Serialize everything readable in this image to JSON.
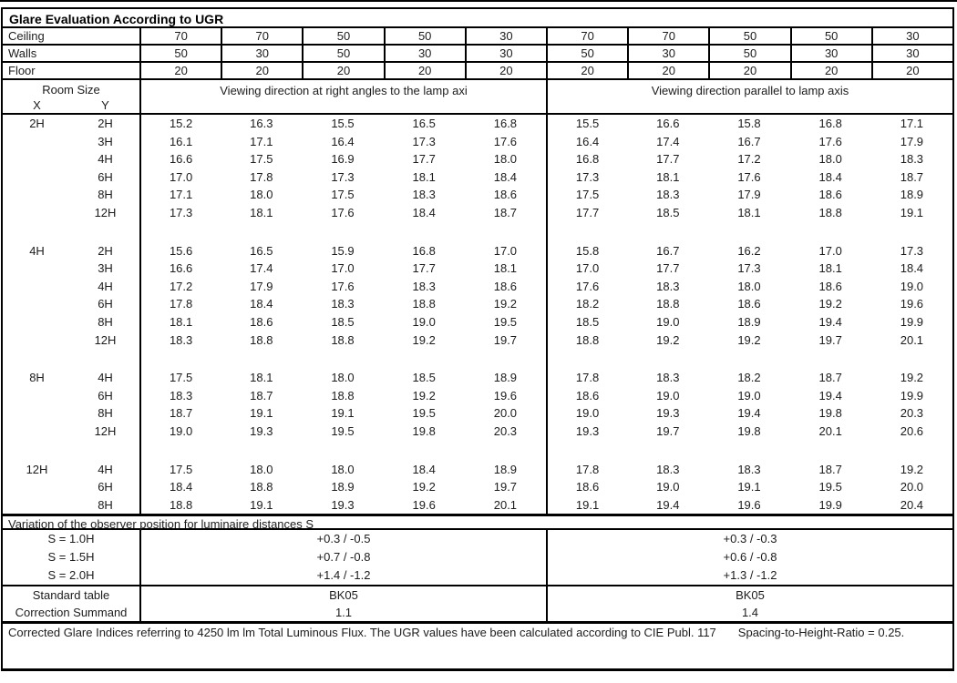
{
  "title": "Glare Evaluation According to UGR",
  "reflectance": {
    "rows": [
      {
        "label": "Ceiling",
        "values": [
          "70",
          "70",
          "50",
          "50",
          "30",
          "70",
          "70",
          "50",
          "50",
          "30"
        ]
      },
      {
        "label": "Walls",
        "values": [
          "50",
          "30",
          "50",
          "30",
          "30",
          "50",
          "30",
          "50",
          "30",
          "30"
        ]
      },
      {
        "label": "Floor",
        "values": [
          "20",
          "20",
          "20",
          "20",
          "20",
          "20",
          "20",
          "20",
          "20",
          "20"
        ]
      }
    ]
  },
  "header": {
    "room_size": "Room Size",
    "x": "X",
    "y": "Y",
    "group_right_angle": "Viewing direction at right angles to the lamp axi",
    "group_parallel": "Viewing direction parallel to lamp axis"
  },
  "ugr_blocks": [
    {
      "x": "2H",
      "rows": [
        {
          "y": "2H",
          "right_angle": [
            "15.2",
            "16.3",
            "15.5",
            "16.5",
            "16.8"
          ],
          "parallel": [
            "15.5",
            "16.6",
            "15.8",
            "16.8",
            "17.1"
          ]
        },
        {
          "y": "3H",
          "right_angle": [
            "16.1",
            "17.1",
            "16.4",
            "17.3",
            "17.6"
          ],
          "parallel": [
            "16.4",
            "17.4",
            "16.7",
            "17.6",
            "17.9"
          ]
        },
        {
          "y": "4H",
          "right_angle": [
            "16.6",
            "17.5",
            "16.9",
            "17.7",
            "18.0"
          ],
          "parallel": [
            "16.8",
            "17.7",
            "17.2",
            "18.0",
            "18.3"
          ]
        },
        {
          "y": "6H",
          "right_angle": [
            "17.0",
            "17.8",
            "17.3",
            "18.1",
            "18.4"
          ],
          "parallel": [
            "17.3",
            "18.1",
            "17.6",
            "18.4",
            "18.7"
          ]
        },
        {
          "y": "8H",
          "right_angle": [
            "17.1",
            "18.0",
            "17.5",
            "18.3",
            "18.6"
          ],
          "parallel": [
            "17.5",
            "18.3",
            "17.9",
            "18.6",
            "18.9"
          ]
        },
        {
          "y": "12H",
          "right_angle": [
            "17.3",
            "18.1",
            "17.6",
            "18.4",
            "18.7"
          ],
          "parallel": [
            "17.7",
            "18.5",
            "18.1",
            "18.8",
            "19.1"
          ]
        }
      ]
    },
    {
      "x": "4H",
      "rows": [
        {
          "y": "2H",
          "right_angle": [
            "15.6",
            "16.5",
            "15.9",
            "16.8",
            "17.0"
          ],
          "parallel": [
            "15.8",
            "16.7",
            "16.2",
            "17.0",
            "17.3"
          ]
        },
        {
          "y": "3H",
          "right_angle": [
            "16.6",
            "17.4",
            "17.0",
            "17.7",
            "18.1"
          ],
          "parallel": [
            "17.0",
            "17.7",
            "17.3",
            "18.1",
            "18.4"
          ]
        },
        {
          "y": "4H",
          "right_angle": [
            "17.2",
            "17.9",
            "17.6",
            "18.3",
            "18.6"
          ],
          "parallel": [
            "17.6",
            "18.3",
            "18.0",
            "18.6",
            "19.0"
          ]
        },
        {
          "y": "6H",
          "right_angle": [
            "17.8",
            "18.4",
            "18.3",
            "18.8",
            "19.2"
          ],
          "parallel": [
            "18.2",
            "18.8",
            "18.6",
            "19.2",
            "19.6"
          ]
        },
        {
          "y": "8H",
          "right_angle": [
            "18.1",
            "18.6",
            "18.5",
            "19.0",
            "19.5"
          ],
          "parallel": [
            "18.5",
            "19.0",
            "18.9",
            "19.4",
            "19.9"
          ]
        },
        {
          "y": "12H",
          "right_angle": [
            "18.3",
            "18.8",
            "18.8",
            "19.2",
            "19.7"
          ],
          "parallel": [
            "18.8",
            "19.2",
            "19.2",
            "19.7",
            "20.1"
          ]
        }
      ]
    },
    {
      "x": "8H",
      "rows": [
        {
          "y": "4H",
          "right_angle": [
            "17.5",
            "18.1",
            "18.0",
            "18.5",
            "18.9"
          ],
          "parallel": [
            "17.8",
            "18.3",
            "18.2",
            "18.7",
            "19.2"
          ]
        },
        {
          "y": "6H",
          "right_angle": [
            "18.3",
            "18.7",
            "18.8",
            "19.2",
            "19.6"
          ],
          "parallel": [
            "18.6",
            "19.0",
            "19.0",
            "19.4",
            "19.9"
          ]
        },
        {
          "y": "8H",
          "right_angle": [
            "18.7",
            "19.1",
            "19.1",
            "19.5",
            "20.0"
          ],
          "parallel": [
            "19.0",
            "19.3",
            "19.4",
            "19.8",
            "20.3"
          ]
        },
        {
          "y": "12H",
          "right_angle": [
            "19.0",
            "19.3",
            "19.5",
            "19.8",
            "20.3"
          ],
          "parallel": [
            "19.3",
            "19.7",
            "19.8",
            "20.1",
            "20.6"
          ]
        }
      ]
    },
    {
      "x": "12H",
      "rows": [
        {
          "y": "4H",
          "right_angle": [
            "17.5",
            "18.0",
            "18.0",
            "18.4",
            "18.9"
          ],
          "parallel": [
            "17.8",
            "18.3",
            "18.3",
            "18.7",
            "19.2"
          ]
        },
        {
          "y": "6H",
          "right_angle": [
            "18.4",
            "18.8",
            "18.9",
            "19.2",
            "19.7"
          ],
          "parallel": [
            "18.6",
            "19.0",
            "19.1",
            "19.5",
            "20.0"
          ]
        },
        {
          "y": "8H",
          "right_angle": [
            "18.8",
            "19.1",
            "19.3",
            "19.6",
            "20.1"
          ],
          "parallel": [
            "19.1",
            "19.4",
            "19.6",
            "19.9",
            "20.4"
          ]
        }
      ]
    }
  ],
  "variation": {
    "heading": "Variation of the observer position for luminaire distances S",
    "rows": [
      {
        "label": "S = 1.0H",
        "right_angle": "+0.3 / -0.5",
        "parallel": "+0.3 / -0.3"
      },
      {
        "label": "S = 1.5H",
        "right_angle": "+0.7 / -0.8",
        "parallel": "+0.6 / -0.8"
      },
      {
        "label": "S = 2.0H",
        "right_angle": "+1.4 / -1.2",
        "parallel": "+1.3 / -1.2"
      }
    ]
  },
  "summary": {
    "rows": [
      {
        "label": "Standard table",
        "right_angle": "BK05",
        "parallel": "BK05"
      },
      {
        "label": "Correction Summand",
        "right_angle": "1.1",
        "parallel": "1.4"
      }
    ]
  },
  "footer": {
    "note": "Corrected Glare Indices referring to 4250 lm lm Total Luminous Flux. The UGR values have been calculated according to CIE Publ. 117",
    "ratio": "Spacing-to-Height-Ratio = 0.25."
  }
}
